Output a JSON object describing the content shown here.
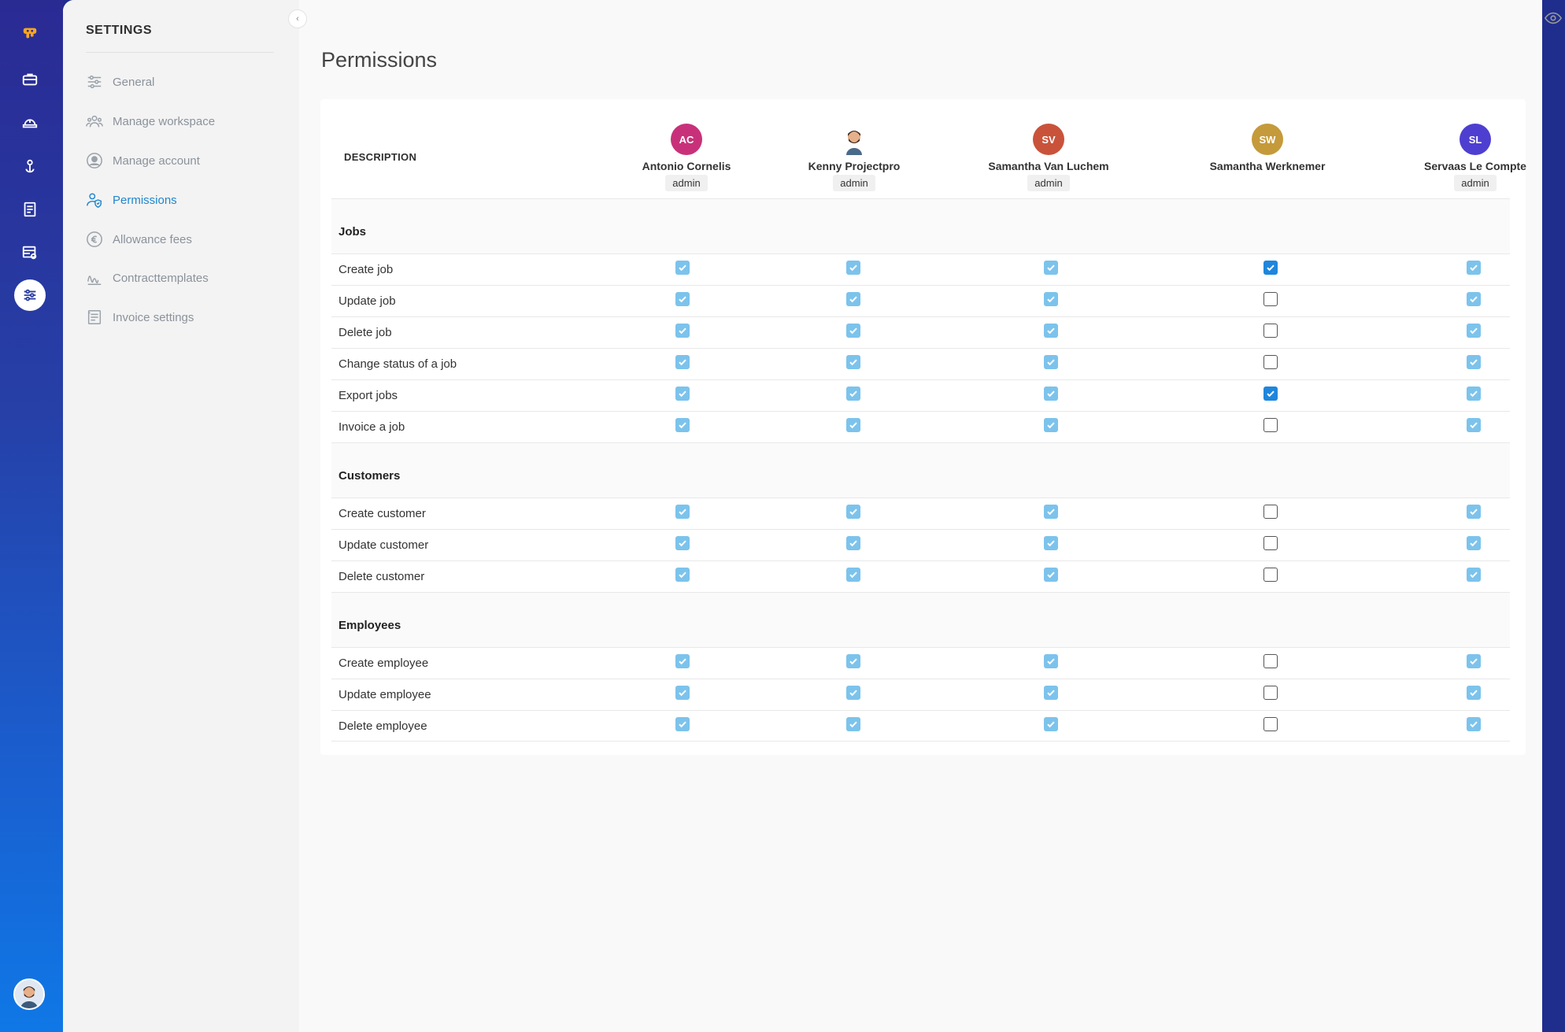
{
  "rail": {
    "logo": "pp-logo-icon",
    "items": [
      {
        "icon": "briefcase-icon"
      },
      {
        "icon": "helmet-icon"
      },
      {
        "icon": "user-anchor-icon"
      },
      {
        "icon": "document-list-icon"
      },
      {
        "icon": "table-settings-icon"
      },
      {
        "icon": "sliders-icon",
        "active": true
      }
    ],
    "user_avatar": "bearded-man-avatar"
  },
  "settings": {
    "title": "SETTINGS",
    "items": [
      {
        "label": "General",
        "icon": "sliders-icon"
      },
      {
        "label": "Manage workspace",
        "icon": "team-icon"
      },
      {
        "label": "Manage account",
        "icon": "user-circle-icon"
      },
      {
        "label": "Permissions",
        "icon": "user-shield-icon",
        "active": true
      },
      {
        "label": "Allowance fees",
        "icon": "euro-icon"
      },
      {
        "label": "Contracttemplates",
        "icon": "signature-icon"
      },
      {
        "label": "Invoice settings",
        "icon": "invoice-icon"
      }
    ]
  },
  "page": {
    "title": "Permissions"
  },
  "table": {
    "description_header": "DESCRIPTION",
    "users": [
      {
        "initials": "AC",
        "name": "Antonio Cornelis",
        "role": "admin",
        "color": "#c8317a"
      },
      {
        "initials": "",
        "name": "Kenny Projectpro",
        "role": "admin",
        "color": "#ffffff",
        "photo": true
      },
      {
        "initials": "SV",
        "name": "Samantha Van Luchem",
        "role": "admin",
        "color": "#c9533a"
      },
      {
        "initials": "SW",
        "name": "Samantha Werknemer",
        "role": "",
        "color": "#c59a3a"
      },
      {
        "initials": "SL",
        "name": "Servaas Le Compte",
        "role": "admin",
        "color": "#4e3fd1"
      }
    ],
    "sections": [
      {
        "label": "Jobs",
        "rows": [
          {
            "label": "Create job",
            "values": [
              "soft",
              "soft",
              "soft",
              "strong",
              "soft"
            ]
          },
          {
            "label": "Update job",
            "values": [
              "soft",
              "soft",
              "soft",
              "empty",
              "soft"
            ]
          },
          {
            "label": "Delete job",
            "values": [
              "soft",
              "soft",
              "soft",
              "empty",
              "soft"
            ]
          },
          {
            "label": "Change status of a job",
            "values": [
              "soft",
              "soft",
              "soft",
              "empty",
              "soft"
            ]
          },
          {
            "label": "Export jobs",
            "values": [
              "soft",
              "soft",
              "soft",
              "strong",
              "soft"
            ]
          },
          {
            "label": "Invoice a job",
            "values": [
              "soft",
              "soft",
              "soft",
              "empty",
              "soft"
            ]
          }
        ]
      },
      {
        "label": "Customers",
        "rows": [
          {
            "label": "Create customer",
            "values": [
              "soft",
              "soft",
              "soft",
              "empty",
              "soft"
            ]
          },
          {
            "label": "Update customer",
            "values": [
              "soft",
              "soft",
              "soft",
              "empty",
              "soft"
            ]
          },
          {
            "label": "Delete customer",
            "values": [
              "soft",
              "soft",
              "soft",
              "empty",
              "soft"
            ]
          }
        ]
      },
      {
        "label": "Employees",
        "rows": [
          {
            "label": "Create employee",
            "values": [
              "soft",
              "soft",
              "soft",
              "empty",
              "soft"
            ]
          },
          {
            "label": "Update employee",
            "values": [
              "soft",
              "soft",
              "soft",
              "empty",
              "soft"
            ]
          },
          {
            "label": "Delete employee",
            "values": [
              "soft",
              "soft",
              "soft",
              "empty",
              "soft"
            ]
          }
        ]
      }
    ]
  },
  "colors": {
    "checked_inherited": "#7cc3ec",
    "checked": "#1f86dc",
    "active_menu": "#1f86cf"
  }
}
